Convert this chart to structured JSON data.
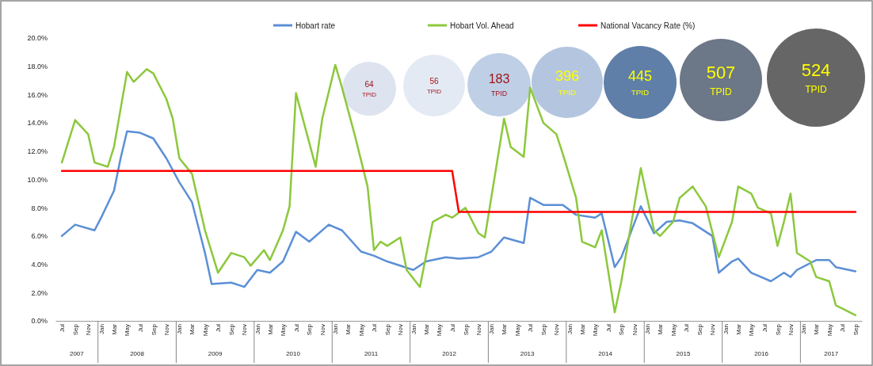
{
  "chart_data": {
    "type": "line",
    "x": [
      "2007-07",
      "2007-09",
      "2007-12",
      "2008-01",
      "2008-03",
      "2008-04",
      "2008-05",
      "2008-07",
      "2008-09",
      "2008-11",
      "2009-01",
      "2009-03",
      "2009-05",
      "2009-06",
      "2009-09",
      "2009-11",
      "2010-01",
      "2010-03",
      "2010-05",
      "2010-07",
      "2010-09",
      "2010-12",
      "2011-02",
      "2011-05",
      "2011-07",
      "2011-09",
      "2012-01",
      "2012-03",
      "2012-06",
      "2012-08",
      "2012-11",
      "2013-01",
      "2013-03",
      "2013-06",
      "2013-07",
      "2013-09",
      "2013-12",
      "2014-02",
      "2014-05",
      "2014-06",
      "2014-08",
      "2014-09",
      "2014-12",
      "2015-02",
      "2015-04",
      "2015-06",
      "2015-08",
      "2015-11",
      "2015-12",
      "2016-02",
      "2016-03",
      "2016-05",
      "2016-06",
      "2016-08",
      "2016-10",
      "2016-11",
      "2016-12",
      "2017-03",
      "2017-05",
      "2017-06",
      "2017-09"
    ],
    "series": [
      {
        "name": "Hobart rate",
        "color": "#5b8fd6",
        "values": [
          6.0,
          6.8,
          6.4,
          7.3,
          9.2,
          11.5,
          13.4,
          13.3,
          12.9,
          11.5,
          9.8,
          8.4,
          4.8,
          2.6,
          2.7,
          2.4,
          3.6,
          3.4,
          4.2,
          6.3,
          5.6,
          6.8,
          6.4,
          4.9,
          4.6,
          4.2,
          3.6,
          4.2,
          4.5,
          4.4,
          4.5,
          4.9,
          5.9,
          5.5,
          8.7,
          8.2,
          8.2,
          7.5,
          7.3,
          7.6,
          3.8,
          4.5,
          8.1,
          6.2,
          7.0,
          7.1,
          6.9,
          6.0,
          3.4,
          4.2,
          4.4,
          3.4,
          3.2,
          2.8,
          3.4,
          3.1,
          3.6,
          4.3,
          4.3,
          3.8,
          3.5
        ]
      },
      {
        "name": "Hobart Vol. Ahead",
        "color": "#8cc83c",
        "x": [
          "2007-07",
          "2007-09",
          "2007-11",
          "2007-12",
          "2008-02",
          "2008-03",
          "2008-05",
          "2008-06",
          "2008-08",
          "2008-09",
          "2008-11",
          "2008-12",
          "2009-01",
          "2009-03",
          "2009-05",
          "2009-07",
          "2009-09",
          "2009-11",
          "2009-12",
          "2010-02",
          "2010-03",
          "2010-05",
          "2010-06",
          "2010-07",
          "2010-09",
          "2010-10",
          "2010-11",
          "2011-01",
          "2011-02",
          "2011-04",
          "2011-06",
          "2011-07",
          "2011-08",
          "2011-09",
          "2011-11",
          "2011-12",
          "2012-02",
          "2012-04",
          "2012-06",
          "2012-07",
          "2012-09",
          "2012-11",
          "2012-12",
          "2013-03",
          "2013-04",
          "2013-06",
          "2013-07",
          "2013-09",
          "2013-11",
          "2013-12",
          "2014-02",
          "2014-03",
          "2014-05",
          "2014-06",
          "2014-08",
          "2014-09",
          "2014-12",
          "2015-02",
          "2015-03",
          "2015-05",
          "2015-06",
          "2015-08",
          "2015-10",
          "2015-12",
          "2016-02",
          "2016-03",
          "2016-05",
          "2016-06",
          "2016-08",
          "2016-09",
          "2016-10",
          "2016-11",
          "2016-12",
          "2017-02",
          "2017-03",
          "2017-05",
          "2017-06",
          "2017-09"
        ],
        "values": [
          11.2,
          14.2,
          13.2,
          11.2,
          10.9,
          12.3,
          17.6,
          16.9,
          17.8,
          17.5,
          15.7,
          14.3,
          11.5,
          10.4,
          6.4,
          3.4,
          4.8,
          4.5,
          3.9,
          5.0,
          4.3,
          6.4,
          8.1,
          16.1,
          12.6,
          10.9,
          14.3,
          18.1,
          16.5,
          13.2,
          9.5,
          5.0,
          5.6,
          5.3,
          5.9,
          3.6,
          2.4,
          7.0,
          7.5,
          7.3,
          8.0,
          6.2,
          5.9,
          14.3,
          12.3,
          11.6,
          16.5,
          14.0,
          13.2,
          11.8,
          8.7,
          5.6,
          5.2,
          6.4,
          0.6,
          2.8,
          10.8,
          6.4,
          6.0,
          7.0,
          8.7,
          9.5,
          8.1,
          4.5,
          7.0,
          9.5,
          9.0,
          8.0,
          7.6,
          5.3,
          7.0,
          9.0,
          4.8,
          4.2,
          3.1,
          2.8,
          1.1,
          0.4
        ]
      },
      {
        "name": "National Vacancy Rate (%)",
        "color": "#ff0000",
        "x": [
          "2007-07",
          "2012-07",
          "2012-08",
          "2017-09"
        ],
        "values": [
          10.6,
          10.6,
          7.7,
          7.7
        ]
      }
    ],
    "xlim": [
      "2007-06",
      "2017-10"
    ],
    "ylim": [
      0,
      20
    ],
    "yticks": [
      {
        "value": 0,
        "label": "0.0%"
      },
      {
        "value": 2,
        "label": "2.0%"
      },
      {
        "value": 4,
        "label": "4.0%"
      },
      {
        "value": 6,
        "label": "6.0%"
      },
      {
        "value": 8,
        "label": "8.0%"
      },
      {
        "value": 10,
        "label": "10.0%"
      },
      {
        "value": 12,
        "label": "12.0%"
      },
      {
        "value": 14,
        "label": "14.0%"
      },
      {
        "value": 16,
        "label": "16.0%"
      },
      {
        "value": 18,
        "label": "18.0%"
      },
      {
        "value": 20,
        "label": "20.0%"
      }
    ],
    "xticks": [
      {
        "value": "2007-07",
        "label": "Jul"
      },
      {
        "value": "2007-09",
        "label": "Sep"
      },
      {
        "value": "2007-11",
        "label": "Nov"
      },
      {
        "value": "2008-01",
        "label": "Jan"
      },
      {
        "value": "2008-03",
        "label": "Mar"
      },
      {
        "value": "2008-05",
        "label": "May"
      },
      {
        "value": "2008-07",
        "label": "Jul"
      },
      {
        "value": "2008-09",
        "label": "Sep"
      },
      {
        "value": "2008-11",
        "label": "Nov"
      },
      {
        "value": "2009-01",
        "label": "Jan"
      },
      {
        "value": "2009-03",
        "label": "Mar"
      },
      {
        "value": "2009-05",
        "label": "May"
      },
      {
        "value": "2009-07",
        "label": "Jul"
      },
      {
        "value": "2009-09",
        "label": "Sep"
      },
      {
        "value": "2009-11",
        "label": "Nov"
      },
      {
        "value": "2010-01",
        "label": "Jan"
      },
      {
        "value": "2010-03",
        "label": "Mar"
      },
      {
        "value": "2010-05",
        "label": "May"
      },
      {
        "value": "2010-07",
        "label": "Jul"
      },
      {
        "value": "2010-09",
        "label": "Sep"
      },
      {
        "value": "2010-11",
        "label": "Nov"
      },
      {
        "value": "2011-01",
        "label": "Jan"
      },
      {
        "value": "2011-03",
        "label": "Mar"
      },
      {
        "value": "2011-05",
        "label": "May"
      },
      {
        "value": "2011-07",
        "label": "Jul"
      },
      {
        "value": "2011-09",
        "label": "Sep"
      },
      {
        "value": "2011-11",
        "label": "Nov"
      },
      {
        "value": "2012-01",
        "label": "Jan"
      },
      {
        "value": "2012-03",
        "label": "Mar"
      },
      {
        "value": "2012-05",
        "label": "May"
      },
      {
        "value": "2012-07",
        "label": "Jul"
      },
      {
        "value": "2012-09",
        "label": "Sep"
      },
      {
        "value": "2012-11",
        "label": "Nov"
      },
      {
        "value": "2013-01",
        "label": "Jan"
      },
      {
        "value": "2013-03",
        "label": "Mar"
      },
      {
        "value": "2013-05",
        "label": "May"
      },
      {
        "value": "2013-07",
        "label": "Jul"
      },
      {
        "value": "2013-09",
        "label": "Sep"
      },
      {
        "value": "2013-11",
        "label": "Nov"
      },
      {
        "value": "2014-01",
        "label": "Jan"
      },
      {
        "value": "2014-03",
        "label": "Mar"
      },
      {
        "value": "2014-05",
        "label": "May"
      },
      {
        "value": "2014-07",
        "label": "Jul"
      },
      {
        "value": "2014-09",
        "label": "Sep"
      },
      {
        "value": "2014-11",
        "label": "Nov"
      },
      {
        "value": "2015-01",
        "label": "Jan"
      },
      {
        "value": "2015-03",
        "label": "Mar"
      },
      {
        "value": "2015-05",
        "label": "May"
      },
      {
        "value": "2015-07",
        "label": "Jul"
      },
      {
        "value": "2015-09",
        "label": "Sep"
      },
      {
        "value": "2015-11",
        "label": "Nov"
      },
      {
        "value": "2016-01",
        "label": "Jan"
      },
      {
        "value": "2016-03",
        "label": "Mar"
      },
      {
        "value": "2016-05",
        "label": "May"
      },
      {
        "value": "2016-07",
        "label": "Jul"
      },
      {
        "value": "2016-09",
        "label": "Sep"
      },
      {
        "value": "2016-11",
        "label": "Nov"
      },
      {
        "value": "2017-01",
        "label": "Jan"
      },
      {
        "value": "2017-03",
        "label": "Mar"
      },
      {
        "value": "2017-05",
        "label": "May"
      },
      {
        "value": "2017-07",
        "label": "Jul"
      },
      {
        "value": "2017-09",
        "label": "Sep"
      }
    ],
    "annotations": [
      "2007",
      "2008",
      "2009",
      "2010",
      "2011",
      "2012",
      "2013",
      "2014",
      "2015",
      "2016",
      "2017",
      "64 TPID",
      "56 TPID",
      "183 TPID",
      "396 TPID",
      "445 TPID",
      "507 TPID",
      "524 TPID"
    ],
    "legend": "top",
    "grid": false,
    "marker": "none",
    "line_style": "solid"
  }
}
